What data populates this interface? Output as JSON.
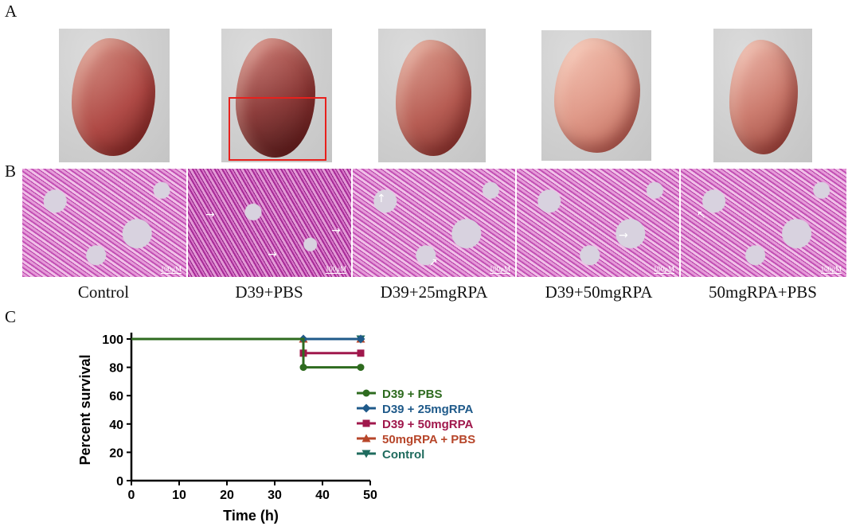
{
  "panels": {
    "a": "A",
    "b": "B",
    "c": "C"
  },
  "group_labels": [
    "Control",
    "D39+PBS",
    "D39+25mgRPA",
    "D39+50mgRPA",
    "50mgRPA+PBS"
  ],
  "scale_bar_label": "100μM",
  "colors": {
    "d39_pbs": "#2e6b1f",
    "d39_25": "#1f5a8a",
    "d39_50": "#a0184c",
    "rpa_pbs": "#b7462a",
    "control": "#1f6b5e",
    "highlight_box": "#e8201c"
  },
  "chart_data": {
    "type": "line",
    "title": "",
    "xlabel": "Time (h)",
    "ylabel": "Percent survival",
    "xlim": [
      0,
      50
    ],
    "ylim": [
      0,
      100
    ],
    "xticks": [
      0,
      10,
      20,
      30,
      40,
      50
    ],
    "yticks": [
      0,
      20,
      40,
      60,
      80,
      100
    ],
    "legend_position": "right",
    "series": [
      {
        "name": "D39 + PBS",
        "marker": "circle",
        "color": "#2e6b1f",
        "x": [
          0,
          36,
          36,
          48
        ],
        "y": [
          100,
          100,
          80,
          80
        ]
      },
      {
        "name": "D39 + 25mgRPA",
        "marker": "diamond",
        "color": "#1f5a8a",
        "x": [
          0,
          36,
          48
        ],
        "y": [
          100,
          100,
          100
        ]
      },
      {
        "name": "D39 + 50mgRPA",
        "marker": "square",
        "color": "#a0184c",
        "x": [
          0,
          36,
          36,
          48
        ],
        "y": [
          100,
          100,
          90,
          90
        ]
      },
      {
        "name": "50mgRPA + PBS",
        "marker": "triangle",
        "color": "#b7462a",
        "x": [
          0,
          36,
          48
        ],
        "y": [
          100,
          100,
          100
        ]
      },
      {
        "name": "Control",
        "marker": "triangle-down",
        "color": "#1f6b5e",
        "x": [
          0,
          48
        ],
        "y": [
          100,
          100
        ]
      }
    ]
  }
}
